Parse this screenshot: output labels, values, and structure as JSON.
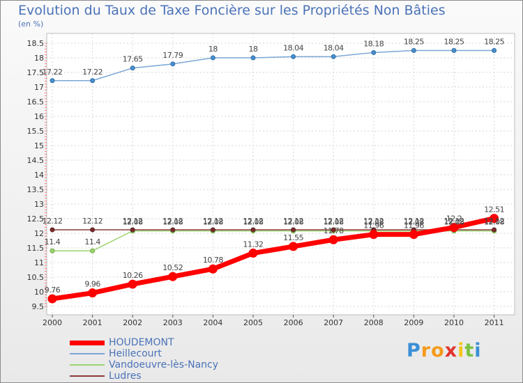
{
  "chart_data": {
    "type": "line",
    "title": "Evolution du Taux de Taxe Foncière sur les Propriétés Non Bâties",
    "ylabel": "(en %)",
    "xlabel": "",
    "ylim": [
      9.5,
      18.5
    ],
    "yticks": [
      9.5,
      10,
      10.5,
      11,
      11.5,
      12,
      12.5,
      13,
      13.5,
      14,
      14.5,
      15,
      15.5,
      16,
      16.5,
      17,
      17.5,
      18,
      18.5
    ],
    "ytick_labels": [
      "9.5",
      "10",
      "10.5",
      "11",
      "11.5",
      "12",
      "12.5",
      "13",
      "13.5",
      "14",
      "14.5",
      "15",
      "15.5",
      "16",
      "16.5",
      "17",
      "17.5",
      "18",
      "18.5"
    ],
    "x": [
      "2000",
      "2001",
      "2002",
      "2003",
      "2004",
      "2005",
      "2006",
      "2007",
      "2008",
      "2009",
      "2010",
      "2011"
    ],
    "series": [
      {
        "name": "HOUDEMONT",
        "color": "#ff0000",
        "values": [
          9.76,
          9.96,
          10.26,
          10.52,
          10.78,
          11.32,
          11.55,
          11.78,
          11.96,
          11.96,
          12.2,
          12.51
        ],
        "labels": [
          "9.76",
          "9.96",
          "10.26",
          "10.52",
          "10.78",
          "11.32",
          "11.55",
          "11.78",
          "11.96",
          "11.96",
          "12.2",
          "12.51"
        ]
      },
      {
        "name": "Heillecourt",
        "color": "#7aa6d6",
        "values": [
          17.22,
          17.22,
          17.65,
          17.79,
          18,
          18,
          18.04,
          18.04,
          18.18,
          18.25,
          18.25,
          18.25
        ],
        "labels": [
          "17.22",
          "17.22",
          "17.65",
          "17.79",
          "18",
          "18",
          "18.04",
          "18.04",
          "18.18",
          "18.25",
          "18.25",
          "18.25"
        ]
      },
      {
        "name": "Vandoeuvre-lès-Nancy",
        "color": "#9ad46f",
        "values": [
          11.4,
          11.4,
          12.08,
          12.08,
          12.08,
          12.08,
          12.08,
          12.08,
          12.08,
          12.08,
          12.08,
          12.08
        ],
        "labels": [
          "11.4",
          "11.4",
          "12.08",
          "12.08",
          "12.08",
          "12.08",
          "12.08",
          "12.08",
          "12.08",
          "12.08",
          "12.08",
          "12.08"
        ]
      },
      {
        "name": "Ludres",
        "color": "#8b3a3a",
        "values": [
          12.12,
          12.12,
          12.12,
          12.12,
          12.12,
          12.12,
          12.12,
          12.12,
          12.12,
          12.12,
          12.12,
          12.12
        ],
        "labels": [
          "12.12",
          "12.12",
          "12.12",
          "12.12",
          "12.12",
          "12.12",
          "12.12",
          "12.12",
          "12.12",
          "12.12",
          "12.12",
          "12.12"
        ]
      }
    ]
  },
  "brand": {
    "name": "Proxiti",
    "letters": [
      "P",
      "r",
      "o",
      "x",
      "i",
      "t",
      "i"
    ],
    "colors": [
      "#3a8fd6",
      "#f59a1b",
      "#f59a1b",
      "#e2332c",
      "#f5c518",
      "#7cc242",
      "#3a8fd6"
    ]
  }
}
